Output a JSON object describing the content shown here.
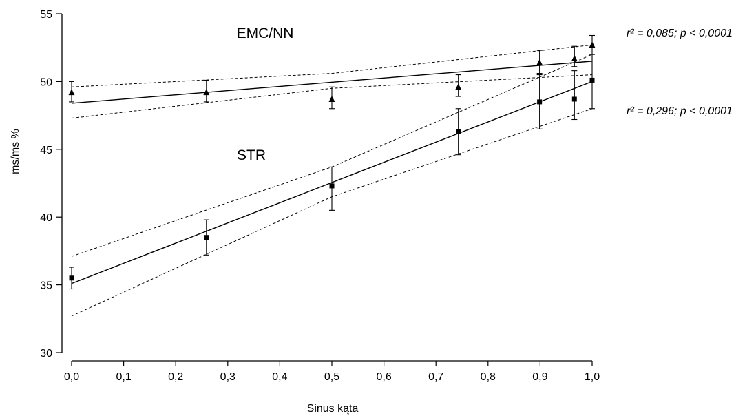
{
  "chart_data": {
    "type": "scatter",
    "title": "",
    "xlabel": "Sinus kąta",
    "ylabel": "ms/ms %",
    "xlim": [
      0,
      1
    ],
    "ylim": [
      30,
      55
    ],
    "x_ticks": [
      "0,0",
      "0,1",
      "0,2",
      "0,3",
      "0,4",
      "0,5",
      "0,6",
      "0,7",
      "0,8",
      "0,9",
      "1,0"
    ],
    "y_ticks": [
      "30",
      "35",
      "40",
      "45",
      "50",
      "55"
    ],
    "grid": false,
    "series": [
      {
        "name": "EMC/NN",
        "marker": "triangle",
        "points": [
          {
            "x": 0.0,
            "y": 49.2,
            "err_low": 48.5,
            "err_high": 50.0
          },
          {
            "x": 0.259,
            "y": 49.2,
            "err_low": 48.5,
            "err_high": 50.1
          },
          {
            "x": 0.5,
            "y": 48.7,
            "err_low": 48.0,
            "err_high": 49.6
          },
          {
            "x": 0.743,
            "y": 49.6,
            "err_low": 48.9,
            "err_high": 50.5
          },
          {
            "x": 0.899,
            "y": 51.4,
            "err_low": 50.6,
            "err_high": 52.3
          },
          {
            "x": 0.966,
            "y": 51.7,
            "err_low": 51.1,
            "err_high": 52.6
          },
          {
            "x": 1.0,
            "y": 52.7,
            "err_low": 52.0,
            "err_high": 53.4
          }
        ],
        "fit": {
          "y0": 48.4,
          "y1": 51.5
        },
        "ci_upper": [
          {
            "x": 0.0,
            "y": 49.6
          },
          {
            "x": 0.5,
            "y": 50.6
          },
          {
            "x": 1.0,
            "y": 52.7
          }
        ],
        "ci_lower": [
          {
            "x": 0.0,
            "y": 47.3
          },
          {
            "x": 0.5,
            "y": 49.5
          },
          {
            "x": 1.0,
            "y": 50.5
          }
        ],
        "annotation": "r² = 0,085; p < 0,0001"
      },
      {
        "name": "STR",
        "marker": "square",
        "points": [
          {
            "x": 0.0,
            "y": 35.5,
            "err_low": 34.7,
            "err_high": 36.3
          },
          {
            "x": 0.259,
            "y": 38.5,
            "err_low": 37.2,
            "err_high": 39.8
          },
          {
            "x": 0.5,
            "y": 42.3,
            "err_low": 40.5,
            "err_high": 43.7
          },
          {
            "x": 0.743,
            "y": 46.3,
            "err_low": 44.6,
            "err_high": 48.0
          },
          {
            "x": 0.899,
            "y": 48.5,
            "err_low": 46.5,
            "err_high": 50.5
          },
          {
            "x": 0.966,
            "y": 48.7,
            "err_low": 47.2,
            "err_high": 50.8
          },
          {
            "x": 1.0,
            "y": 50.1,
            "err_low": 48.0,
            "err_high": 52.0
          }
        ],
        "fit": {
          "y0": 35.1,
          "y1": 50.0
        },
        "ci_upper": [
          {
            "x": 0.0,
            "y": 37.1
          },
          {
            "x": 0.5,
            "y": 43.7
          },
          {
            "x": 1.0,
            "y": 52.0
          }
        ],
        "ci_lower": [
          {
            "x": 0.0,
            "y": 32.7
          },
          {
            "x": 0.5,
            "y": 41.5
          },
          {
            "x": 1.0,
            "y": 48.0
          }
        ],
        "annotation": "r² = 0,296; p < 0,0001"
      }
    ]
  }
}
